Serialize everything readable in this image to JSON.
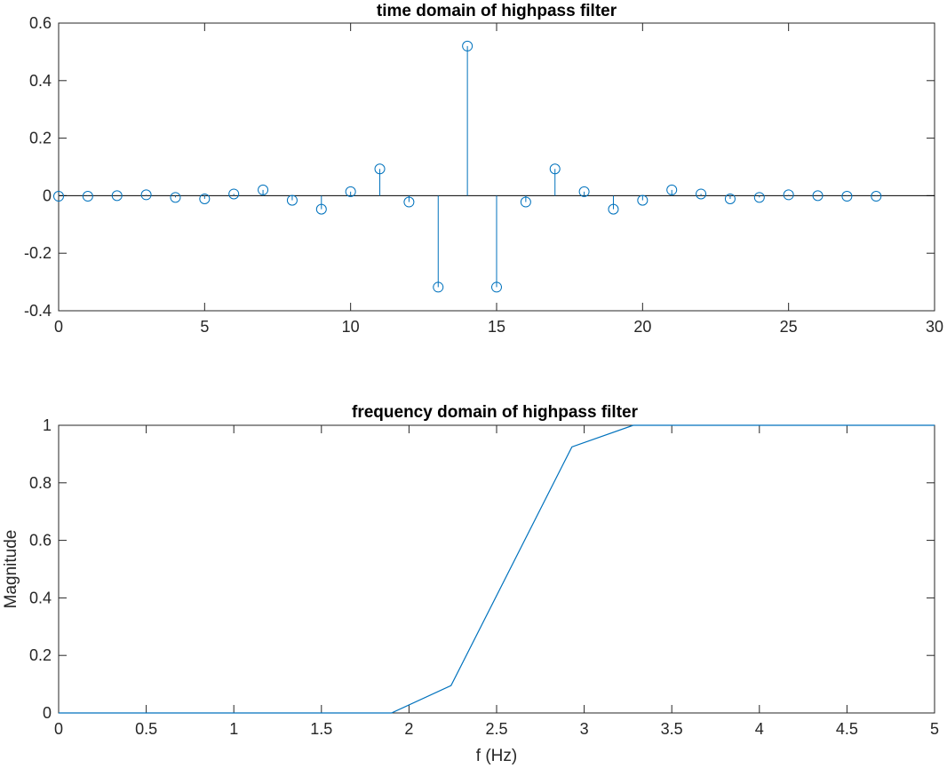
{
  "chart_data": [
    {
      "type": "stem",
      "title": "time domain of highpass filter",
      "xlabel": "",
      "ylabel": "",
      "xlim": [
        0,
        30
      ],
      "ylim": [
        -0.4,
        0.6
      ],
      "xticks": [
        0,
        5,
        10,
        15,
        20,
        25,
        30
      ],
      "xtick_labels": [
        "0",
        "5",
        "10",
        "15",
        "20",
        "25",
        "30"
      ],
      "yticks": [
        -0.4,
        -0.2,
        0,
        0.2,
        0.4,
        0.6
      ],
      "ytick_labels": [
        "-0.4",
        "-0.2",
        "0",
        "0.2",
        "0.4",
        "0.6"
      ],
      "baseline": 0,
      "color": "#0072BD",
      "x": [
        0,
        1,
        2,
        3,
        4,
        5,
        6,
        7,
        8,
        9,
        10,
        11,
        12,
        13,
        14,
        15,
        16,
        17,
        18,
        19,
        20,
        21,
        22,
        23,
        24,
        25,
        26,
        27,
        28
      ],
      "y": [
        -0.002,
        -0.002,
        0.0,
        0.003,
        -0.006,
        -0.011,
        0.006,
        0.02,
        -0.016,
        -0.047,
        0.014,
        0.093,
        -0.022,
        -0.318,
        0.52,
        -0.318,
        -0.022,
        0.093,
        0.014,
        -0.047,
        -0.016,
        0.02,
        0.006,
        -0.011,
        -0.006,
        0.003,
        0.0,
        -0.002,
        -0.002
      ]
    },
    {
      "type": "line",
      "title": "frequency domain of highpass filter",
      "xlabel": "f (Hz)",
      "ylabel": "Magnitude",
      "xlim": [
        0,
        5
      ],
      "ylim": [
        0,
        1
      ],
      "xticks": [
        0,
        0.5,
        1,
        1.5,
        2,
        2.5,
        3,
        3.5,
        4,
        4.5,
        5
      ],
      "xtick_labels": [
        "0",
        "0.5",
        "1",
        "1.5",
        "2",
        "2.5",
        "3",
        "3.5",
        "4",
        "4.5",
        "5"
      ],
      "yticks": [
        0,
        0.2,
        0.4,
        0.6,
        0.8,
        1
      ],
      "ytick_labels": [
        "0",
        "0.2",
        "0.4",
        "0.6",
        "0.8",
        "1"
      ],
      "color": "#0072BD",
      "x": [
        0,
        0.5,
        1.0,
        1.5,
        1.9,
        2.24,
        2.93,
        3.28,
        3.6,
        4.0,
        4.5,
        5.0
      ],
      "y": [
        0,
        0,
        0,
        0,
        0,
        0.095,
        0.925,
        1.0,
        1.0,
        1.0,
        1.0,
        1.0
      ]
    }
  ]
}
